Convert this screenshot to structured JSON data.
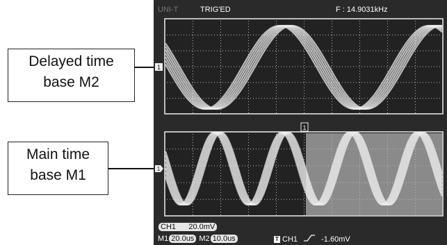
{
  "callouts": {
    "delayed": {
      "line1": "Delayed time",
      "line2": "base M2"
    },
    "main": {
      "line1": "Main time",
      "line2": "base M1"
    }
  },
  "scope": {
    "brand": "UNI-T",
    "status": "TRIG'ED",
    "frequency": "F :  14.9031kHz",
    "channel_label": "CH1",
    "volts_per_div": "20.0mV",
    "m1_label": "M1",
    "m1_timebase": "20.0us",
    "m2_label": "M2",
    "m2_timebase": "10.0us",
    "trigger_icon": "T",
    "trigger_source": "CH1",
    "trigger_level": "-1.60mV",
    "marker_m2": "1",
    "marker_m1": "1",
    "zoom_marker": "1"
  },
  "colors": {
    "screen_bg": "#2a2a2a",
    "trace": "#eeeeee",
    "grid": "#bbbbbb",
    "zoom_window": "#8a8a8a"
  }
}
